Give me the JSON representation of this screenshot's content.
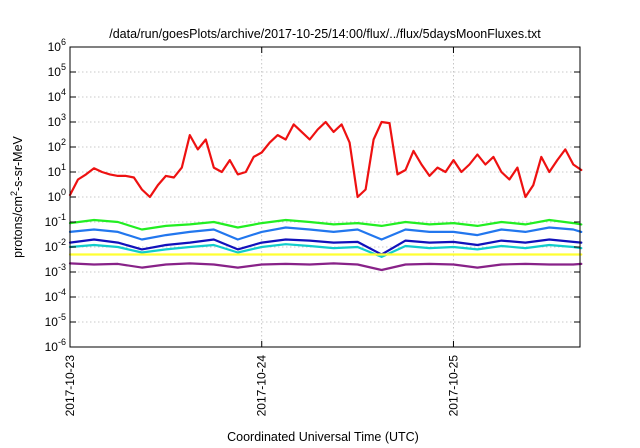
{
  "chart_data": {
    "type": "line",
    "title": "/data/run/goesPlots/archive/2017-10-25/14:00/flux/../flux/5daysMoonFluxes.txt",
    "xlabel": "Coordinated Universal Time (UTC)",
    "ylabel": "protons/cm2-s-sr-MeV",
    "ylabel_parts": {
      "pre": "protons/cm",
      "sup": "2",
      "post": "-s-sr-MeV"
    },
    "yscale": "log",
    "ylim_exponents": [
      -6,
      6
    ],
    "y_ticks": [
      {
        "base": "10",
        "exp": "-6"
      },
      {
        "base": "10",
        "exp": "-5"
      },
      {
        "base": "10",
        "exp": "-4"
      },
      {
        "base": "10",
        "exp": "-3"
      },
      {
        "base": "10",
        "exp": "-2"
      },
      {
        "base": "10",
        "exp": "-1"
      },
      {
        "base": "10",
        "exp": "0"
      },
      {
        "base": "10",
        "exp": "1"
      },
      {
        "base": "10",
        "exp": "2"
      },
      {
        "base": "10",
        "exp": "3"
      },
      {
        "base": "10",
        "exp": "4"
      },
      {
        "base": "10",
        "exp": "5"
      },
      {
        "base": "10",
        "exp": "6"
      }
    ],
    "xlim_days": [
      0,
      2.66
    ],
    "x_ticks": [
      {
        "label": "2017-10-23",
        "day": 0
      },
      {
        "label": "2017-10-24",
        "day": 1
      },
      {
        "label": "2017-10-25",
        "day": 2
      }
    ],
    "grid": true,
    "series": [
      {
        "color": "#ee1111",
        "x_hours": [
          0,
          1,
          2,
          3,
          4,
          5,
          6,
          7,
          8,
          9,
          10,
          11,
          12,
          13,
          14,
          15,
          16,
          17,
          18,
          19,
          20,
          21,
          22,
          23,
          24,
          25,
          26,
          27,
          28,
          29,
          30,
          31,
          32,
          33,
          34,
          35,
          36,
          37,
          38,
          39,
          40,
          41,
          42,
          43,
          44,
          45,
          46,
          47,
          48,
          49,
          50,
          51,
          52,
          53,
          54,
          55,
          56,
          57,
          58,
          59,
          60,
          61,
          62,
          63,
          64
        ],
        "y": [
          1.2,
          5,
          8,
          14,
          10,
          8,
          7,
          7,
          6,
          2,
          1,
          3,
          7,
          6,
          15,
          300,
          80,
          200,
          15,
          10,
          30,
          8,
          10,
          40,
          60,
          150,
          300,
          200,
          800,
          400,
          200,
          500,
          1000,
          400,
          800,
          150,
          1,
          2,
          200,
          1000,
          900,
          8,
          12,
          70,
          20,
          7,
          15,
          10,
          30,
          10,
          20,
          50,
          20,
          40,
          10,
          5,
          15,
          1,
          3,
          40,
          10,
          30,
          80,
          20,
          12
        ]
      },
      {
        "color": "#22ee22",
        "x_hours": [
          0,
          3,
          6,
          9,
          12,
          15,
          18,
          21,
          24,
          27,
          30,
          33,
          36,
          39,
          42,
          45,
          48,
          51,
          54,
          57,
          60,
          63,
          64
        ],
        "y": [
          0.09,
          0.12,
          0.1,
          0.05,
          0.07,
          0.08,
          0.1,
          0.06,
          0.09,
          0.12,
          0.1,
          0.08,
          0.09,
          0.07,
          0.1,
          0.08,
          0.09,
          0.07,
          0.1,
          0.08,
          0.12,
          0.09,
          0.08
        ]
      },
      {
        "color": "#2277ee",
        "x_hours": [
          0,
          3,
          6,
          9,
          12,
          15,
          18,
          21,
          24,
          27,
          30,
          33,
          36,
          39,
          42,
          45,
          48,
          51,
          54,
          57,
          60,
          63,
          64
        ],
        "y": [
          0.04,
          0.05,
          0.04,
          0.02,
          0.03,
          0.04,
          0.05,
          0.02,
          0.04,
          0.06,
          0.05,
          0.04,
          0.05,
          0.02,
          0.05,
          0.04,
          0.04,
          0.03,
          0.05,
          0.04,
          0.06,
          0.05,
          0.04
        ]
      },
      {
        "color": "#1111bb",
        "x_hours": [
          0,
          3,
          6,
          9,
          12,
          15,
          18,
          21,
          24,
          27,
          30,
          33,
          36,
          39,
          42,
          45,
          48,
          51,
          54,
          57,
          60,
          63,
          64
        ],
        "y": [
          0.015,
          0.02,
          0.015,
          0.008,
          0.012,
          0.015,
          0.02,
          0.008,
          0.015,
          0.02,
          0.018,
          0.015,
          0.016,
          0.005,
          0.018,
          0.015,
          0.016,
          0.012,
          0.018,
          0.015,
          0.02,
          0.016,
          0.015
        ]
      },
      {
        "color": "#11cccc",
        "x_hours": [
          0,
          3,
          6,
          9,
          12,
          15,
          18,
          21,
          24,
          27,
          30,
          33,
          36,
          39,
          42,
          45,
          48,
          51,
          54,
          57,
          60,
          63,
          64
        ],
        "y": [
          0.01,
          0.012,
          0.01,
          0.006,
          0.008,
          0.01,
          0.012,
          0.006,
          0.01,
          0.013,
          0.011,
          0.009,
          0.01,
          0.004,
          0.011,
          0.009,
          0.01,
          0.008,
          0.011,
          0.009,
          0.012,
          0.01,
          0.009
        ]
      },
      {
        "color": "#ffff33",
        "x_hours": [
          0,
          8,
          16,
          24,
          32,
          40,
          48,
          56,
          64
        ],
        "y": [
          0.005,
          0.005,
          0.005,
          0.005,
          0.005,
          0.005,
          0.005,
          0.005,
          0.005
        ]
      },
      {
        "color": "#882288",
        "x_hours": [
          0,
          3,
          6,
          9,
          12,
          15,
          18,
          21,
          24,
          27,
          30,
          33,
          36,
          39,
          42,
          45,
          48,
          51,
          54,
          57,
          60,
          63,
          64
        ],
        "y": [
          0.0022,
          0.002,
          0.0021,
          0.0015,
          0.002,
          0.0022,
          0.002,
          0.0015,
          0.002,
          0.0021,
          0.002,
          0.0022,
          0.002,
          0.0012,
          0.002,
          0.0021,
          0.002,
          0.0015,
          0.002,
          0.0021,
          0.002,
          0.002,
          0.0021
        ]
      }
    ]
  }
}
